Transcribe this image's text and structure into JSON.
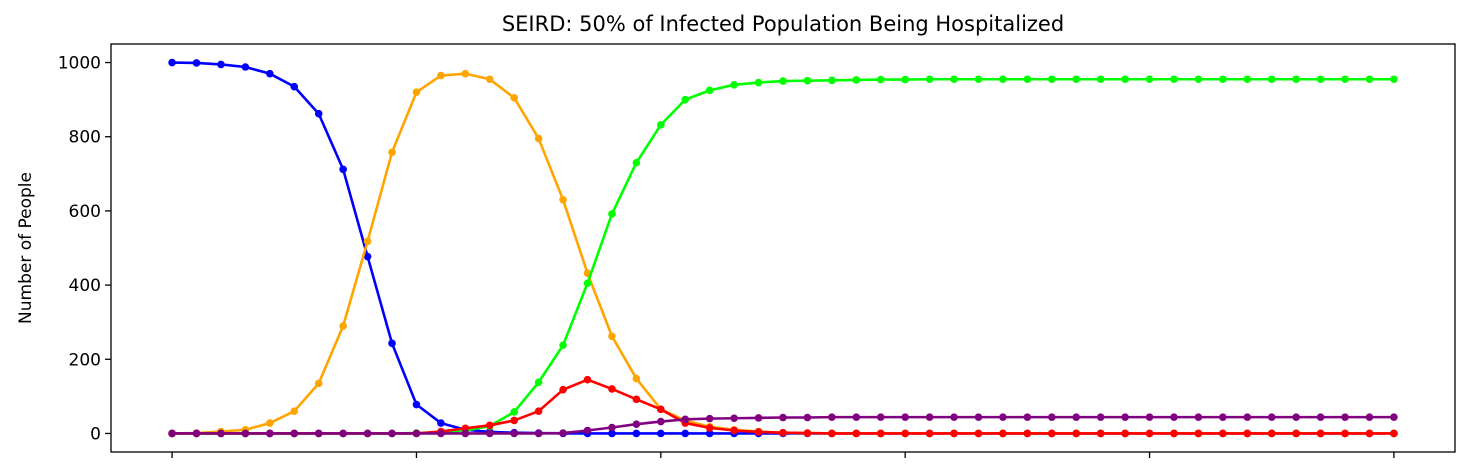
{
  "chart_data": {
    "type": "line",
    "title": "SEIRD: 50% of Infected Population Being Hospitalized",
    "xlabel": "",
    "ylabel": "Number of People",
    "xlim": [
      -2.5,
      52.5
    ],
    "ylim": [
      -50,
      1050
    ],
    "x": [
      0,
      1,
      2,
      3,
      4,
      5,
      6,
      7,
      8,
      9,
      10,
      11,
      12,
      13,
      14,
      15,
      16,
      17,
      18,
      19,
      20,
      21,
      22,
      23,
      24,
      25,
      26,
      27,
      28,
      29,
      30,
      31,
      32,
      33,
      34,
      35,
      36,
      37,
      38,
      39,
      40,
      41,
      42,
      43,
      44,
      45,
      46,
      47,
      48,
      49,
      50
    ],
    "x_ticks": [
      0,
      10,
      20,
      30,
      40,
      50
    ],
    "x_tick_labels_shown": false,
    "y_ticks": [
      0,
      200,
      400,
      600,
      800,
      1000
    ],
    "y_tick_labels": [
      "0",
      "200",
      "400",
      "600",
      "800",
      "1000"
    ],
    "grid": false,
    "legend": "none",
    "marker": "circle",
    "series": [
      {
        "color": "#0000ff",
        "values": [
          1000,
          999,
          995,
          988,
          970,
          935,
          862,
          712,
          477,
          243,
          78,
          28,
          10,
          4,
          2,
          1,
          0,
          0,
          0,
          0,
          0,
          0,
          0,
          0,
          0,
          0,
          0,
          0,
          0,
          0,
          0,
          0,
          0,
          0,
          0,
          0,
          0,
          0,
          0,
          0,
          0,
          0,
          0,
          0,
          0,
          0,
          0,
          0,
          0,
          0,
          0
        ]
      },
      {
        "color": "#ffa500",
        "values": [
          0,
          1,
          5,
          10,
          28,
          60,
          135,
          290,
          518,
          758,
          920,
          965,
          970,
          955,
          905,
          795,
          630,
          432,
          262,
          148,
          65,
          35,
          18,
          10,
          5,
          2,
          1,
          0,
          0,
          0,
          0,
          0,
          0,
          0,
          0,
          0,
          0,
          0,
          0,
          0,
          0,
          0,
          0,
          0,
          0,
          0,
          0,
          0,
          0,
          0,
          0
        ]
      },
      {
        "color": "#00ff00",
        "values": [
          0,
          0,
          0,
          0,
          0,
          0,
          0,
          0,
          0,
          0,
          1,
          3,
          8,
          20,
          58,
          138,
          238,
          405,
          592,
          730,
          832,
          900,
          925,
          940,
          946,
          950,
          951,
          952,
          953,
          954,
          954,
          955,
          955,
          955,
          955,
          955,
          955,
          955,
          955,
          955,
          955,
          955,
          955,
          955,
          955,
          955,
          955,
          955,
          955,
          955,
          955
        ]
      },
      {
        "color": "#ff0000",
        "values": [
          0,
          0,
          0,
          0,
          0,
          0,
          0,
          0,
          0,
          0,
          0,
          5,
          14,
          22,
          35,
          60,
          118,
          145,
          120,
          92,
          65,
          28,
          15,
          8,
          4,
          2,
          1,
          0,
          0,
          0,
          0,
          0,
          0,
          0,
          0,
          0,
          0,
          0,
          0,
          0,
          0,
          0,
          0,
          0,
          0,
          0,
          0,
          0,
          0,
          0,
          0
        ]
      },
      {
        "color": "#800080",
        "values": [
          0,
          0,
          0,
          0,
          0,
          0,
          0,
          0,
          0,
          0,
          0,
          0,
          0,
          0,
          0,
          0,
          1,
          8,
          16,
          25,
          32,
          38,
          40,
          41,
          42,
          43,
          43,
          44,
          44,
          44,
          44,
          44,
          44,
          44,
          44,
          44,
          44,
          44,
          44,
          44,
          44,
          44,
          44,
          44,
          44,
          44,
          44,
          44,
          44,
          44,
          44
        ]
      }
    ]
  }
}
